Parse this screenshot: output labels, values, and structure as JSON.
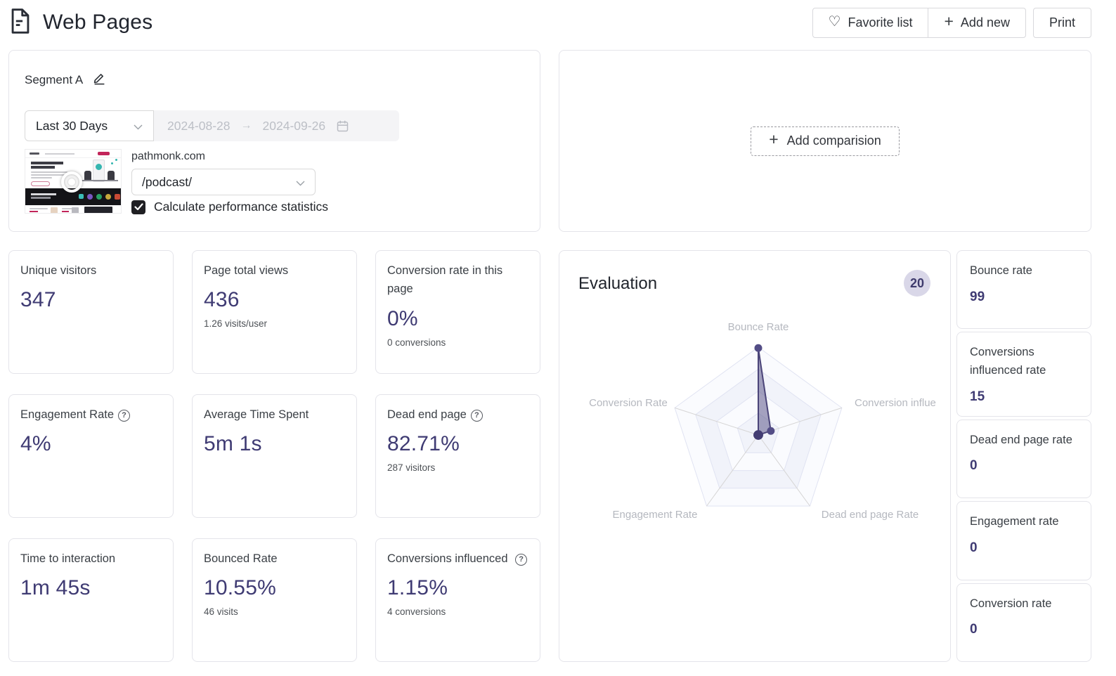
{
  "header": {
    "title": "Web Pages",
    "favorite_button": "Favorite list",
    "add_new_button": "Add new",
    "print_button": "Print"
  },
  "segment": {
    "name": "Segment A",
    "period_select": "Last 30 Days",
    "date_start": "2024-08-28",
    "date_end": "2024-09-26",
    "site": "pathmonk.com",
    "page_select": "/podcast/",
    "checkbox_label": "Calculate performance statistics",
    "checkbox_checked": true
  },
  "comparison": {
    "add_button": "Add comparision"
  },
  "metrics": [
    {
      "title": "Unique visitors",
      "value": "347",
      "sub": ""
    },
    {
      "title": "Page total views",
      "value": "436",
      "sub": "1.26 visits/user"
    },
    {
      "title": "Conversion rate in this page",
      "value": "0%",
      "sub": "0 conversions"
    },
    {
      "title": "Engagement Rate",
      "value": "4%",
      "sub": "",
      "help": true
    },
    {
      "title": "Average Time Spent",
      "value": "5m 1s",
      "sub": ""
    },
    {
      "title": "Dead end page",
      "value": "82.71%",
      "sub": "287 visitors",
      "help": true
    },
    {
      "title": "Time to interaction",
      "value": "1m 45s",
      "sub": ""
    },
    {
      "title": "Bounced Rate",
      "value": "10.55%",
      "sub": "46 visits"
    },
    {
      "title": "Conversions influenced",
      "value": "1.15%",
      "sub": "4 conversions",
      "help": true
    }
  ],
  "evaluation": {
    "title": "Evaluation",
    "score": "20",
    "sidebar": [
      {
        "label": "Bounce rate",
        "value": "99"
      },
      {
        "label": "Conversions influenced rate",
        "value": "15"
      },
      {
        "label": "Dead end page rate",
        "value": "0"
      },
      {
        "label": "Engagement rate",
        "value": "0"
      },
      {
        "label": "Conversion rate",
        "value": "0"
      }
    ]
  },
  "chart_data": {
    "type": "radar",
    "axes": [
      "Bounce Rate",
      "Conversion influe",
      "Dead end page Rate",
      "Engagement Rate",
      "Conversion Rate"
    ],
    "values": [
      99,
      15,
      0,
      0,
      0
    ],
    "max": 100,
    "rings": 4,
    "fill_color": "#5d5789",
    "stroke_color": "#4b4579",
    "grid_stroke": "#e0e3f2",
    "spoke_color": "#d6d5d5",
    "label_color": "#b5b8bf"
  },
  "colors": {
    "accent": "#3f3b73",
    "badge_bg": "#d9d7e8",
    "muted_text": "#4d5156"
  }
}
